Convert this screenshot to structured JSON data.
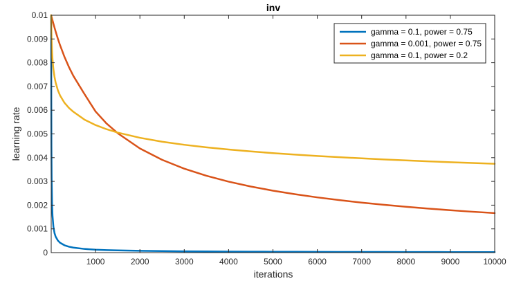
{
  "chart_data": {
    "type": "line",
    "title": "inv",
    "xlabel": "iterations",
    "ylabel": "learning rate",
    "xlim": [
      0,
      10000
    ],
    "ylim": [
      0,
      0.01
    ],
    "xticks": [
      1000,
      2000,
      3000,
      4000,
      5000,
      6000,
      7000,
      8000,
      9000,
      10000
    ],
    "xtick_labels": [
      "1000",
      "2000",
      "3000",
      "4000",
      "5000",
      "6000",
      "7000",
      "8000",
      "9000",
      "10000"
    ],
    "yticks": [
      0,
      0.001,
      0.002,
      0.003,
      0.004,
      0.005,
      0.006,
      0.007,
      0.008,
      0.009,
      0.01
    ],
    "ytick_labels": [
      "0",
      "0.001",
      "0.002",
      "0.003",
      "0.004",
      "0.005",
      "0.006",
      "0.007",
      "0.008",
      "0.009",
      "0.01"
    ],
    "grid": false,
    "legend_position": "top-right",
    "x": [
      0,
      2,
      5,
      10,
      20,
      30,
      50,
      75,
      100,
      150,
      200,
      300,
      400,
      500,
      750,
      1000,
      1250,
      1500,
      2000,
      2500,
      3000,
      3500,
      4000,
      4500,
      5000,
      5500,
      6000,
      6500,
      7000,
      7500,
      8000,
      8500,
      9000,
      9500,
      10000
    ],
    "series": [
      {
        "name": "gamma = 0.1, power = 0.75",
        "color": "#0072BD",
        "values": [
          0.01,
          0.006729,
          0.004473,
          0.003139,
          0.002021,
          0.001541,
          0.00109,
          0.000822,
          0.000675,
          0.000509,
          0.000415,
          0.000309,
          0.00025,
          0.000211,
          0.000155,
          0.000125,
          0.000106,
          9.3e-05,
          7.56e-05,
          6.41e-05,
          5.59e-05,
          4.97e-05,
          4.48e-05,
          4.09e-05,
          3.77e-05,
          3.5e-05,
          3.27e-05,
          3.07e-05,
          2.89e-05,
          2.74e-05,
          2.6e-05,
          2.47e-05,
          2.36e-05,
          2.26e-05,
          2.16e-05
        ]
      },
      {
        "name": "gamma = 0.001, power = 0.75",
        "color": "#D95319",
        "values": [
          0.01,
          0.009985,
          0.009963,
          0.009926,
          0.009853,
          0.009782,
          0.009643,
          0.009476,
          0.009315,
          0.009013,
          0.008736,
          0.008242,
          0.007816,
          0.007444,
          0.006679,
          0.005946,
          0.005434,
          0.00503,
          0.004387,
          0.00391,
          0.003536,
          0.003237,
          0.00299,
          0.002785,
          0.00261,
          0.002459,
          0.002327,
          0.002211,
          0.002107,
          0.002015,
          0.001931,
          0.001855,
          0.001786,
          0.001722,
          0.001664
        ]
      },
      {
        "name": "gamma = 0.1, power = 0.2",
        "color": "#EDB120",
        "values": [
          0.01,
          0.009642,
          0.009306,
          0.008913,
          0.008447,
          0.008134,
          0.007728,
          0.007397,
          0.007164,
          0.006842,
          0.006619,
          0.006309,
          0.006096,
          0.005932,
          0.005603,
          0.005373,
          0.005197,
          0.005057,
          0.004838,
          0.004673,
          0.004543,
          0.004435,
          0.004343,
          0.004263,
          0.004192,
          0.004129,
          0.004071,
          0.004019,
          0.003971,
          0.003926,
          0.003885,
          0.003846,
          0.003809,
          0.003775,
          0.003742
        ]
      }
    ]
  }
}
